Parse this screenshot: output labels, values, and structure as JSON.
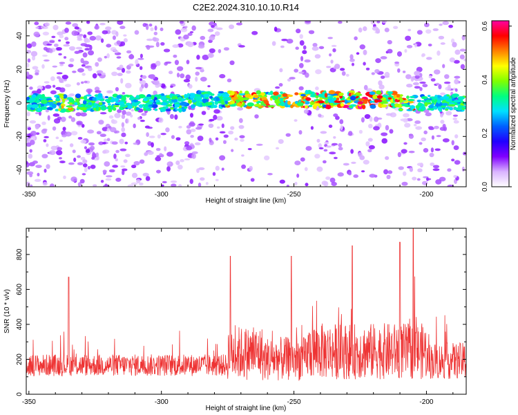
{
  "title": "C2E2.2024.310.10.10.R14",
  "chart_data": [
    {
      "type": "heatmap",
      "xlabel": "Height of straight line (km)",
      "ylabel": "Frequency (Hz)",
      "xlim": [
        -351,
        -185
      ],
      "ylim": [
        -50,
        49
      ],
      "xticks": [
        -350,
        -300,
        -250,
        -200
      ],
      "yticks": [
        -40,
        -20,
        0,
        20,
        40
      ],
      "colorbar": {
        "label": "Normalized spectral amplitude",
        "range": [
          0.0,
          0.62
        ],
        "ticks": [
          "0.0",
          "0.2",
          "0.4",
          "0.6"
        ],
        "colors": [
          "#ffffff",
          "#d9b3ff",
          "#8000ff",
          "#2000ff",
          "#0060ff",
          "#00e0ff",
          "#00ff80",
          "#80ff00",
          "#ffff00",
          "#ff8000",
          "#ff0000",
          "#ff00a0"
        ]
      },
      "features": {
        "main_band_frequency_hz": 0,
        "main_band_peak_region_km": [
          -275,
          -205
        ]
      }
    },
    {
      "type": "line",
      "xlabel": "Height of straight line (km)",
      "ylabel": "SNR (10 * v/v)",
      "xlim": [
        -351,
        -185
      ],
      "ylim": [
        0,
        950
      ],
      "xticks": [
        -350,
        -300,
        -250,
        -200
      ],
      "yticks": [
        0,
        200,
        400,
        600,
        800
      ],
      "color": "#ee3333",
      "baseline_mean": 160,
      "notable_peaks": [
        {
          "x": -335,
          "y": 670
        },
        {
          "x": -274,
          "y": 790
        },
        {
          "x": -251,
          "y": 790
        },
        {
          "x": -228,
          "y": 850
        },
        {
          "x": -210,
          "y": 870
        },
        {
          "x": -205,
          "y": 950
        }
      ]
    }
  ]
}
